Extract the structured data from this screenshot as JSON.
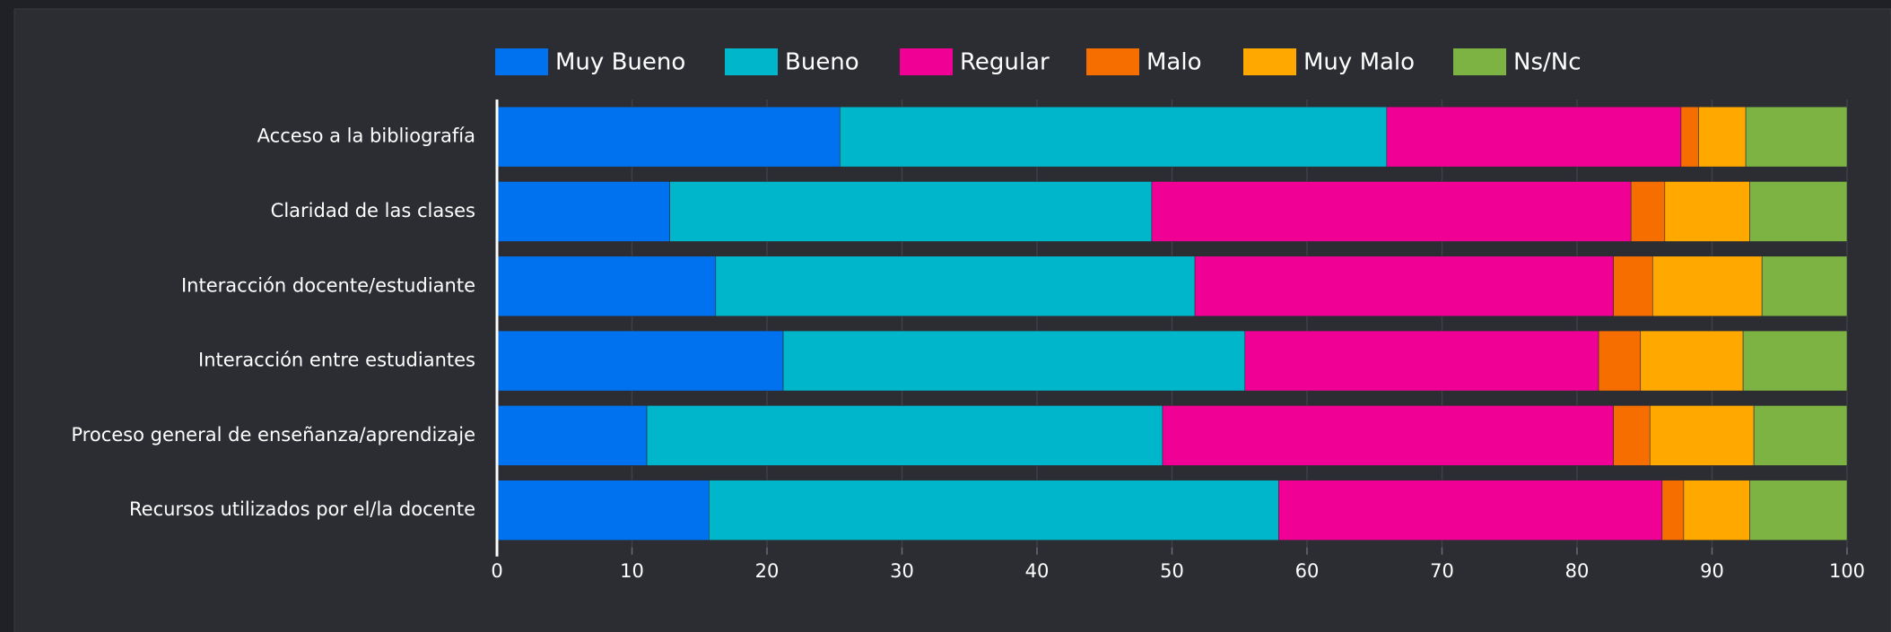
{
  "chart_data": {
    "type": "stacked_bar_horizontal",
    "categories": [
      "Acceso a la bibliografía",
      "Claridad de las clases",
      "Interacción docente/estudiante",
      "Interacción entre estudiantes",
      "Proceso general de enseñanza/aprendizaje",
      "Recursos utilizados por el/la docente"
    ],
    "series": [
      {
        "name": "Muy Bueno",
        "color": "#0072f0",
        "values": [
          25.4,
          12.8,
          16.2,
          21.2,
          11.1,
          15.7
        ]
      },
      {
        "name": "Bueno",
        "color": "#00b6cb",
        "values": [
          40.5,
          35.7,
          35.5,
          34.2,
          38.2,
          42.2
        ]
      },
      {
        "name": "Regular",
        "color": "#f10096",
        "values": [
          21.8,
          35.5,
          31.0,
          26.2,
          33.4,
          28.4
        ]
      },
      {
        "name": "Malo",
        "color": "#f66d00",
        "values": [
          1.3,
          2.5,
          2.9,
          3.1,
          2.7,
          1.6
        ]
      },
      {
        "name": "Muy Malo",
        "color": "#ffa800",
        "values": [
          3.5,
          6.3,
          8.1,
          7.6,
          7.7,
          4.9
        ]
      },
      {
        "name": "Ns/Nc",
        "color": "#7cb342",
        "values": [
          7.5,
          7.2,
          6.3,
          7.7,
          6.9,
          7.2
        ]
      }
    ],
    "xlim": [
      0,
      100
    ],
    "xticks": [
      0,
      10,
      20,
      30,
      40,
      50,
      60,
      70,
      80,
      90,
      100
    ],
    "grid": true,
    "legend": "top"
  }
}
